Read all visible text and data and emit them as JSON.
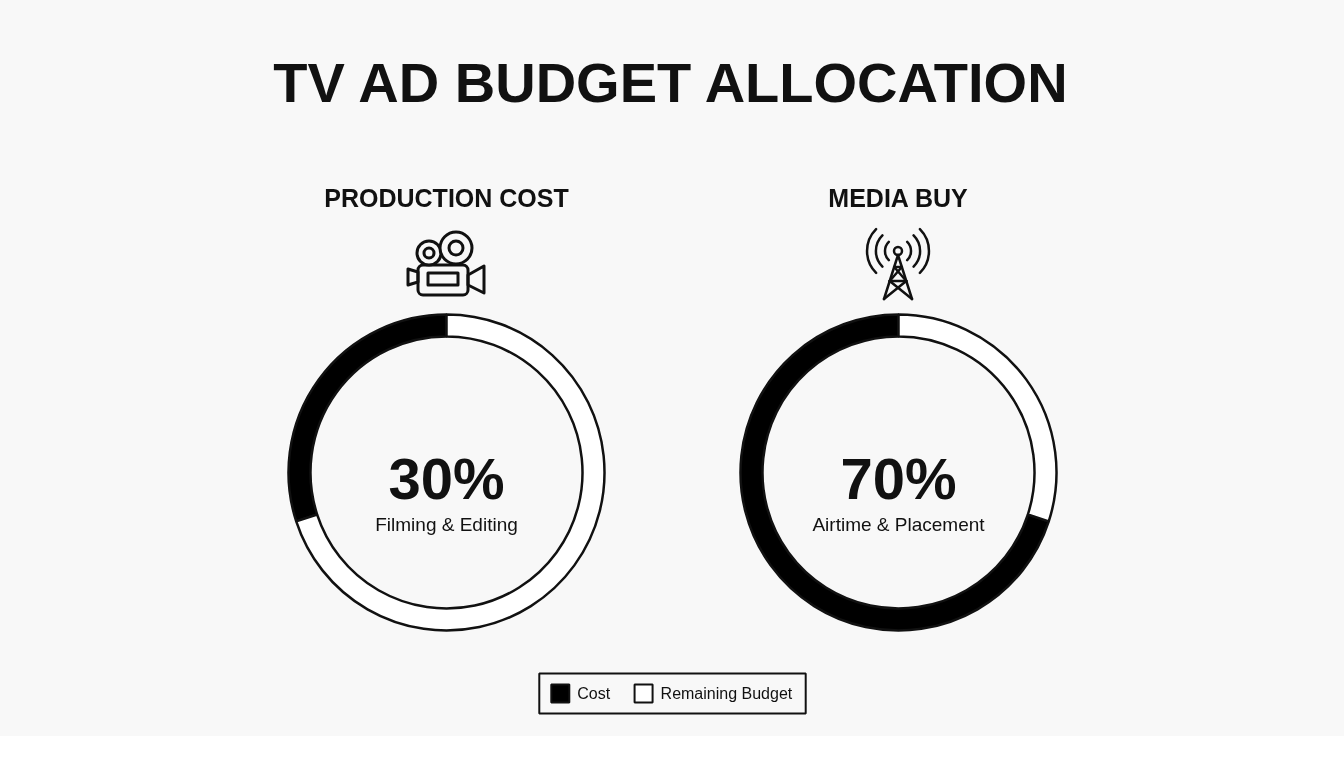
{
  "chart_data": [
    {
      "type": "donut",
      "title": "TV AD BUDGET ALLOCATION",
      "subtitle": "PRODUCTION COST",
      "categories": [
        "Cost",
        "Remaining Budget"
      ],
      "values": [
        30,
        70
      ],
      "colors": [
        "#000000",
        "#ffffff"
      ],
      "annotations": [
        "30%",
        "Filming & Editing"
      ],
      "legend": "bottom"
    },
    {
      "type": "donut",
      "subtitle": "MEDIA BUY",
      "categories": [
        null,
        null
      ],
      "values": [
        70,
        30
      ],
      "colors": [
        "#000000",
        "#ffffff"
      ],
      "annotations": [
        "70%",
        "Airtime & Placement"
      ]
    }
  ]
}
